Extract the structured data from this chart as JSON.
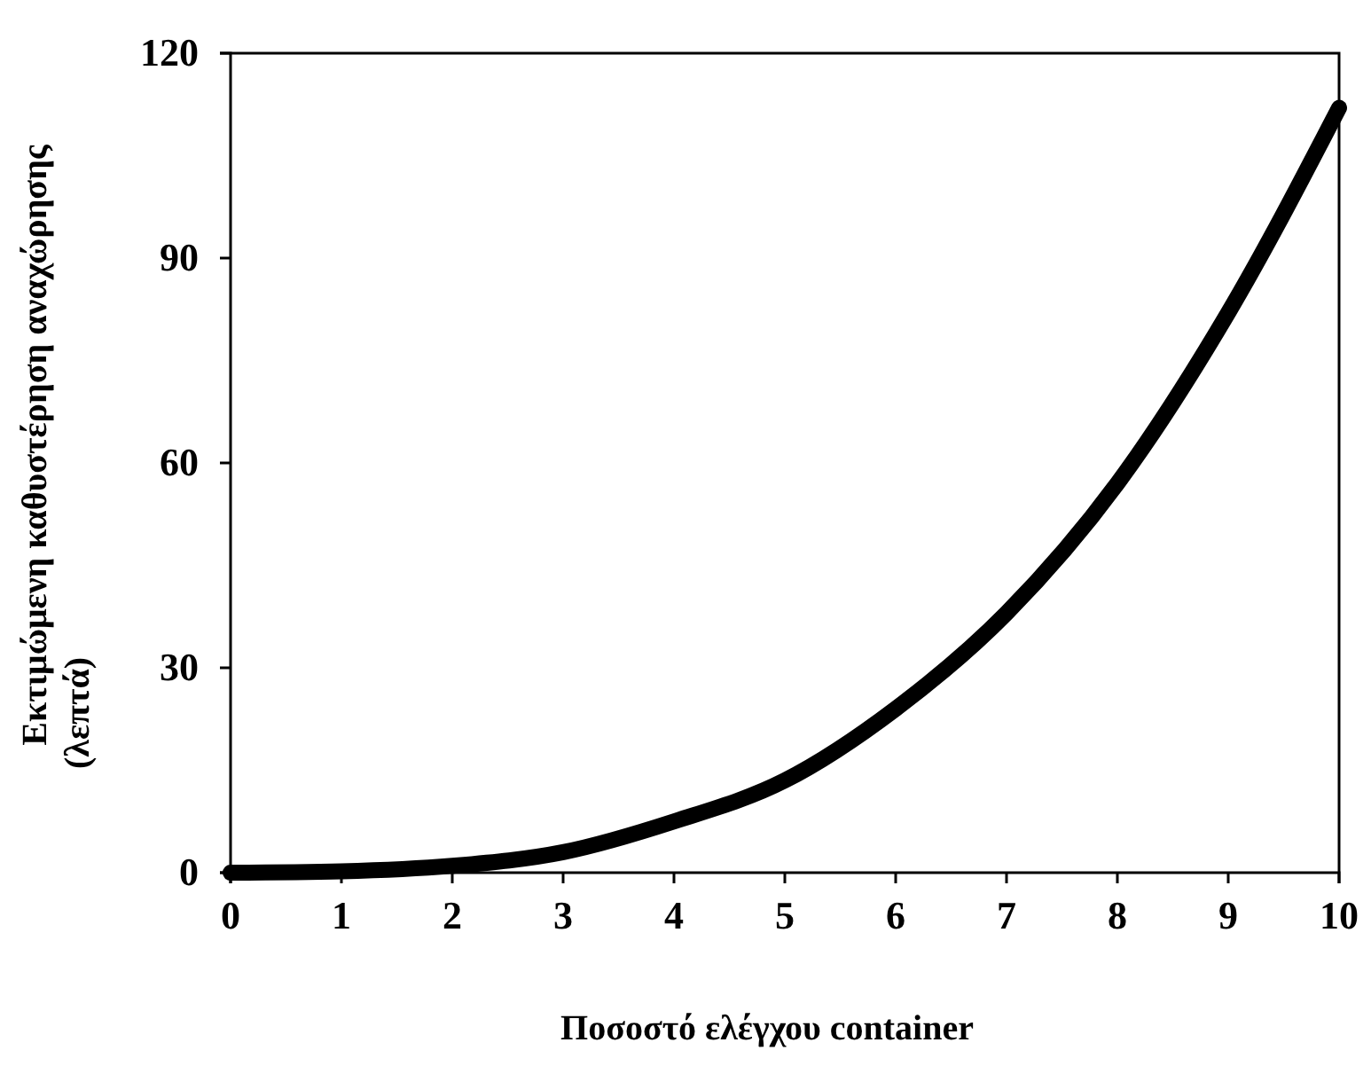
{
  "chart_data": {
    "type": "line",
    "xlabel": "Ποσοστό ελέγχου container",
    "ylabel": "Εκτιμώμενη καθυστέρηση αναχώρησης (λεπτά)",
    "x": [
      0,
      1,
      2,
      3,
      4,
      5,
      6,
      7,
      8,
      9,
      10
    ],
    "series": [
      {
        "color": "#000000",
        "values": [
          0,
          0.2,
          1,
          3,
          7.5,
          13.5,
          24,
          38,
          57,
          82,
          112
        ]
      }
    ],
    "xlim": [
      0,
      10
    ],
    "xticks": [
      0,
      1,
      2,
      3,
      4,
      5,
      6,
      7,
      8,
      9,
      10
    ],
    "ylim": [
      0,
      120
    ],
    "yticks": [
      0,
      30,
      60,
      90,
      120
    ],
    "grid": false,
    "marker": "none",
    "line_style": "solid"
  }
}
